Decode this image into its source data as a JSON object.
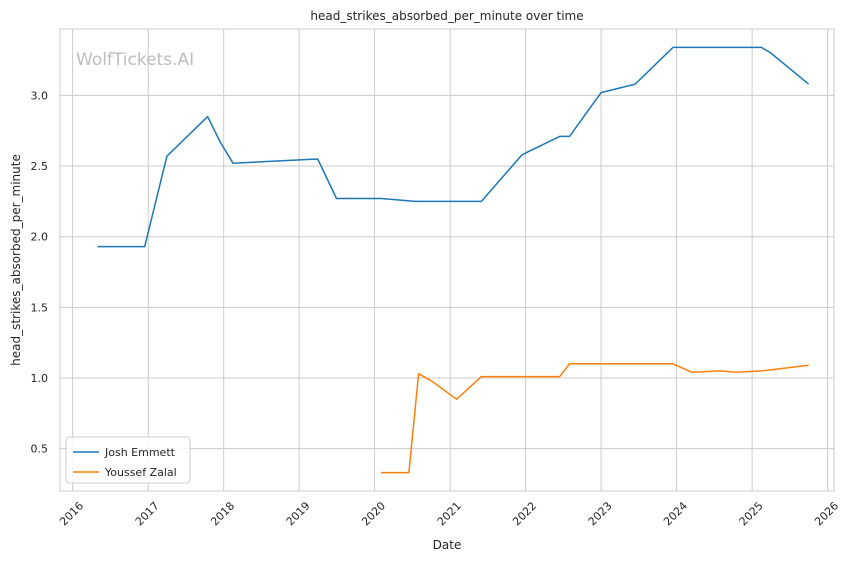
{
  "chart_data": {
    "type": "line",
    "title": "head_strikes_absorbed_per_minute over time",
    "xlabel": "Date",
    "ylabel": "head_strikes_absorbed_per_minute",
    "watermark": "WolfTickets.AI",
    "xlim": [
      "2015-11-01",
      "2026-02-01"
    ],
    "ylim": [
      0.2,
      3.47
    ],
    "xticks": [
      "2016",
      "2017",
      "2018",
      "2019",
      "2020",
      "2021",
      "2022",
      "2023",
      "2024",
      "2025",
      "2026"
    ],
    "yticks": [
      "0.5",
      "1.0",
      "1.5",
      "2.0",
      "2.5",
      "3.0"
    ],
    "grid": true,
    "legend_position": "bottom-left",
    "series": [
      {
        "name": "Josh Emmett",
        "color": "#1f77b4",
        "points": [
          [
            "2016-05-01",
            1.93
          ],
          [
            "2016-12-15",
            1.93
          ],
          [
            "2017-04-01",
            2.57
          ],
          [
            "2017-10-15",
            2.85
          ],
          [
            "2017-12-15",
            2.67
          ],
          [
            "2018-02-15",
            2.52
          ],
          [
            "2019-04-01",
            2.55
          ],
          [
            "2019-07-01",
            2.27
          ],
          [
            "2020-02-01",
            2.27
          ],
          [
            "2020-07-15",
            2.25
          ],
          [
            "2021-06-01",
            2.25
          ],
          [
            "2021-12-15",
            2.58
          ],
          [
            "2022-06-15",
            2.71
          ],
          [
            "2022-08-01",
            2.71
          ],
          [
            "2023-01-01",
            3.02
          ],
          [
            "2023-06-15",
            3.08
          ],
          [
            "2023-12-15",
            3.34
          ],
          [
            "2025-02-15",
            3.34
          ],
          [
            "2025-04-01",
            3.3
          ],
          [
            "2025-10-01",
            3.08
          ]
        ]
      },
      {
        "name": "Youssef Zalal",
        "color": "#ff7f0e",
        "points": [
          [
            "2020-02-01",
            0.33
          ],
          [
            "2020-06-15",
            0.33
          ],
          [
            "2020-08-01",
            1.03
          ],
          [
            "2020-10-01",
            0.98
          ],
          [
            "2021-02-01",
            0.85
          ],
          [
            "2021-06-01",
            1.01
          ],
          [
            "2022-06-15",
            1.01
          ],
          [
            "2022-08-01",
            1.1
          ],
          [
            "2023-12-15",
            1.1
          ],
          [
            "2024-03-15",
            1.04
          ],
          [
            "2024-08-01",
            1.05
          ],
          [
            "2024-10-15",
            1.04
          ],
          [
            "2025-02-15",
            1.05
          ],
          [
            "2025-04-15",
            1.06
          ],
          [
            "2025-10-01",
            1.09
          ]
        ]
      }
    ]
  }
}
